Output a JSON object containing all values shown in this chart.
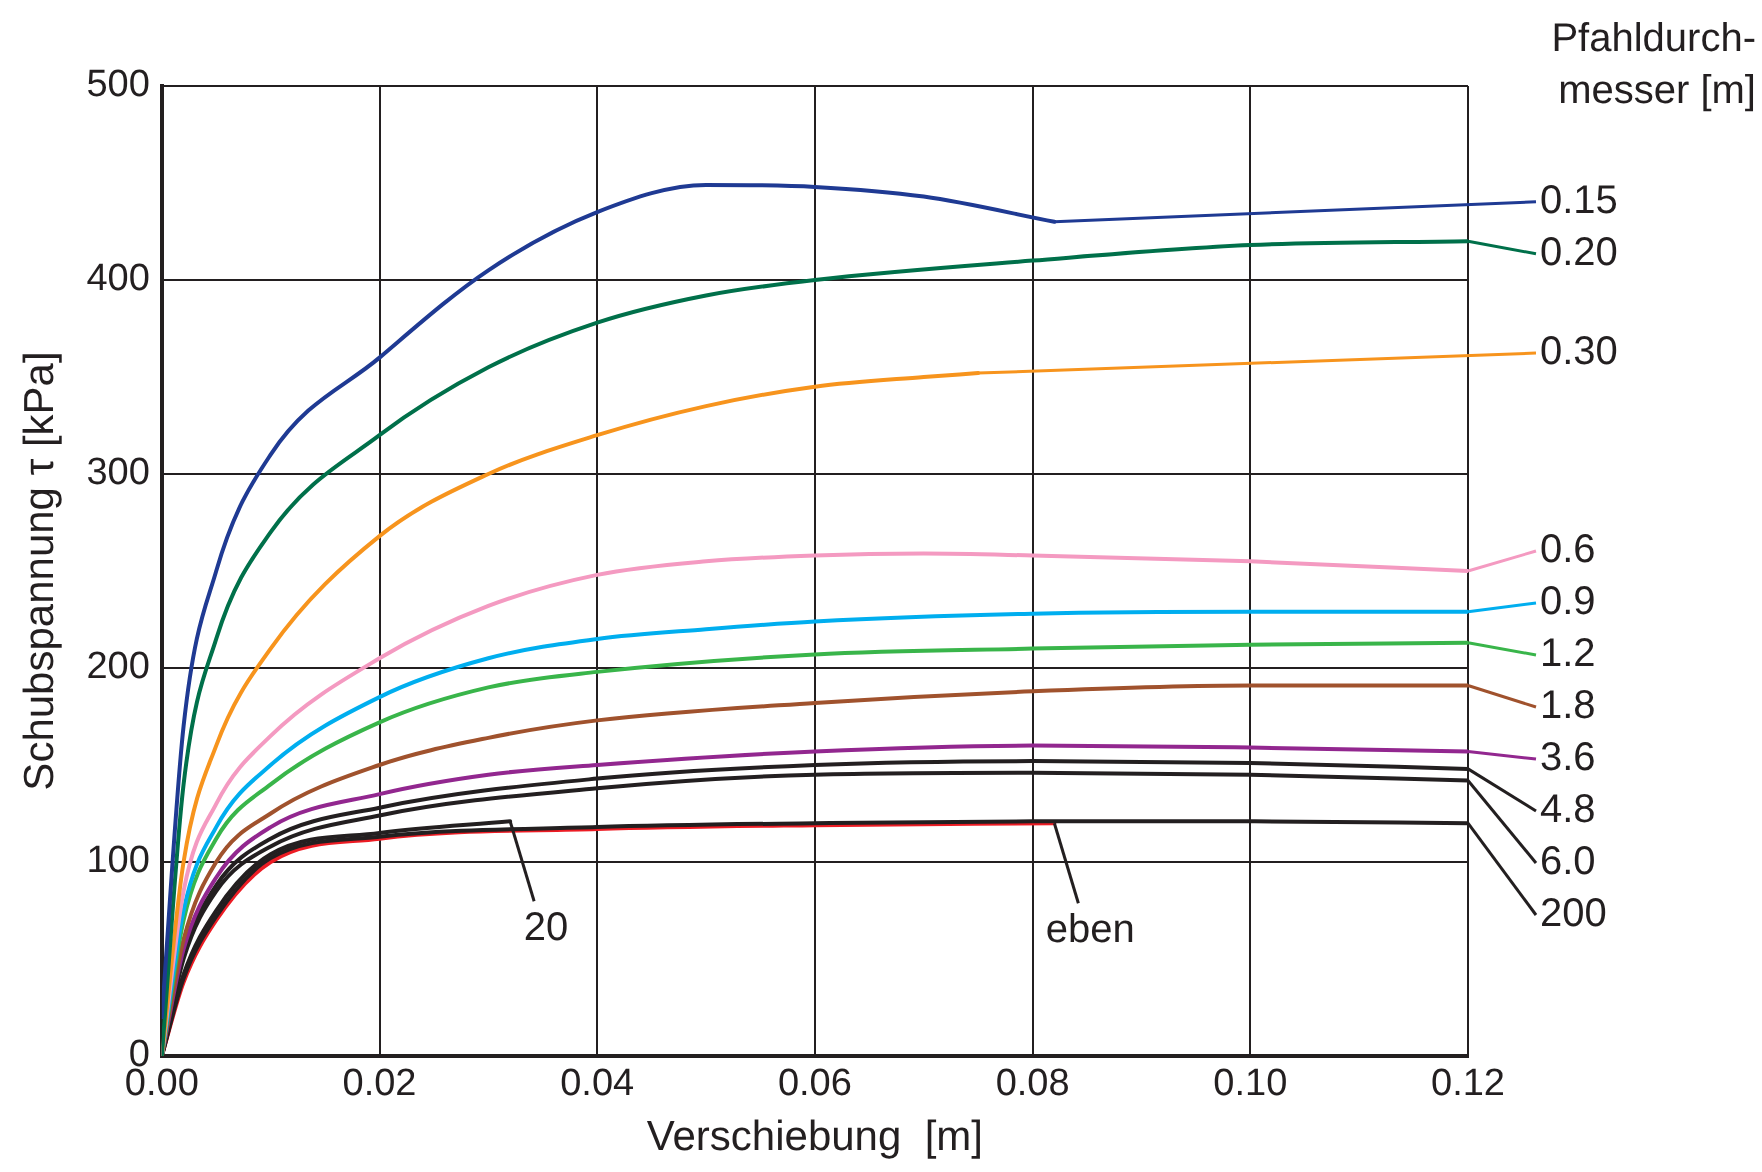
{
  "chart_data": {
    "type": "line",
    "xlabel": "Verschiebung  [m]",
    "ylabel": "Schubspannung τ [kPa]",
    "legend_title": "Pfahldurch-\nmesser [m]",
    "xlim": [
      0,
      0.12
    ],
    "ylim": [
      0,
      500
    ],
    "xticks": [
      {
        "value": 0,
        "label": "0.00"
      },
      {
        "value": 0.02,
        "label": "0.02"
      },
      {
        "value": 0.04,
        "label": "0.04"
      },
      {
        "value": 0.06,
        "label": "0.06"
      },
      {
        "value": 0.08,
        "label": "0.08"
      },
      {
        "value": 0.1,
        "label": "0.10"
      },
      {
        "value": 0.12,
        "label": "0.12"
      }
    ],
    "yticks": [
      0,
      100,
      200,
      300,
      400,
      500
    ],
    "grid": true,
    "legend": "right",
    "marker": "none",
    "line_style": "solid",
    "series": [
      {
        "name": "0.15",
        "color": "#1f3a93",
        "x": [
          0,
          0.002,
          0.005,
          0.01,
          0.02,
          0.03,
          0.04,
          0.05,
          0.06,
          0.07,
          0.082
        ],
        "values": [
          20,
          170,
          250,
          310,
          360,
          405,
          435,
          449,
          448,
          443,
          430
        ]
      },
      {
        "name": "0.20",
        "color": "#00704a",
        "x": [
          0,
          0.002,
          0.005,
          0.01,
          0.02,
          0.03,
          0.04,
          0.05,
          0.06,
          0.08,
          0.1,
          0.12
        ],
        "values": [
          0,
          140,
          215,
          270,
          320,
          355,
          378,
          392,
          400,
          410,
          418,
          420
        ]
      },
      {
        "name": "0.30",
        "color": "#f7941d",
        "x": [
          0,
          0.002,
          0.005,
          0.01,
          0.02,
          0.03,
          0.04,
          0.05,
          0.06,
          0.07,
          0.075
        ],
        "values": [
          0,
          100,
          160,
          210,
          268,
          300,
          320,
          335,
          345,
          350,
          352
        ]
      },
      {
        "name": "0.6",
        "color": "#f49ac1",
        "x": [
          0,
          0.002,
          0.005,
          0.01,
          0.02,
          0.03,
          0.04,
          0.05,
          0.06,
          0.07,
          0.08,
          0.1,
          0.12
        ],
        "values": [
          0,
          85,
          130,
          165,
          205,
          232,
          248,
          255,
          258,
          259,
          258,
          255,
          250
        ]
      },
      {
        "name": "0.9",
        "color": "#00aeef",
        "x": [
          0,
          0.002,
          0.005,
          0.01,
          0.02,
          0.03,
          0.04,
          0.05,
          0.06,
          0.08,
          0.1,
          0.12
        ],
        "values": [
          0,
          75,
          118,
          150,
          185,
          205,
          215,
          220,
          224,
          228,
          229,
          229
        ]
      },
      {
        "name": "1.2",
        "color": "#39b54a",
        "x": [
          0,
          0.002,
          0.005,
          0.01,
          0.02,
          0.03,
          0.04,
          0.06,
          0.08,
          0.1,
          0.12
        ],
        "values": [
          0,
          70,
          112,
          140,
          172,
          190,
          198,
          207,
          210,
          212,
          213
        ]
      },
      {
        "name": "1.8",
        "color": "#a0522d",
        "x": [
          0,
          0.002,
          0.005,
          0.01,
          0.02,
          0.03,
          0.04,
          0.06,
          0.08,
          0.1,
          0.12
        ],
        "values": [
          0,
          60,
          100,
          125,
          150,
          164,
          173,
          182,
          188,
          191,
          191
        ]
      },
      {
        "name": "3.6",
        "color": "#92278f",
        "x": [
          0,
          0.002,
          0.005,
          0.01,
          0.02,
          0.03,
          0.04,
          0.06,
          0.08,
          0.1,
          0.12
        ],
        "values": [
          0,
          55,
          92,
          118,
          135,
          145,
          150,
          157,
          160,
          159,
          157
        ]
      },
      {
        "name": "4.8",
        "color": "#231f20",
        "x": [
          0,
          0.002,
          0.005,
          0.01,
          0.02,
          0.04,
          0.06,
          0.08,
          0.1,
          0.12
        ],
        "values": [
          0,
          52,
          88,
          112,
          128,
          143,
          150,
          152,
          151,
          148
        ]
      },
      {
        "name": "6.0",
        "color": "#231f20",
        "x": [
          0,
          0.002,
          0.005,
          0.01,
          0.02,
          0.04,
          0.06,
          0.08,
          0.1,
          0.12
        ],
        "values": [
          0,
          50,
          85,
          108,
          124,
          138,
          145,
          146,
          145,
          142
        ]
      },
      {
        "name": "200",
        "color": "#231f20",
        "x": [
          0,
          0.002,
          0.005,
          0.01,
          0.02,
          0.04,
          0.06,
          0.08,
          0.1,
          0.12
        ],
        "values": [
          0,
          40,
          72,
          102,
          113,
          118,
          120,
          121,
          121,
          120
        ]
      },
      {
        "color": "#231f20",
        "x": [
          0,
          0.002,
          0.005,
          0.01,
          0.02,
          0.032
        ],
        "values": [
          0,
          42,
          75,
          104,
          115,
          121
        ]
      },
      {
        "color": "#ed1c24",
        "x": [
          0,
          0.002,
          0.005,
          0.01,
          0.02,
          0.04,
          0.06,
          0.082
        ],
        "values": [
          0,
          38,
          70,
          100,
          112,
          117,
          119,
          120
        ]
      }
    ],
    "annotations": [
      {
        "text": "20",
        "x": 0.032,
        "y": 121
      },
      {
        "text": "eben",
        "x": 0.082,
        "y": 120
      }
    ]
  }
}
